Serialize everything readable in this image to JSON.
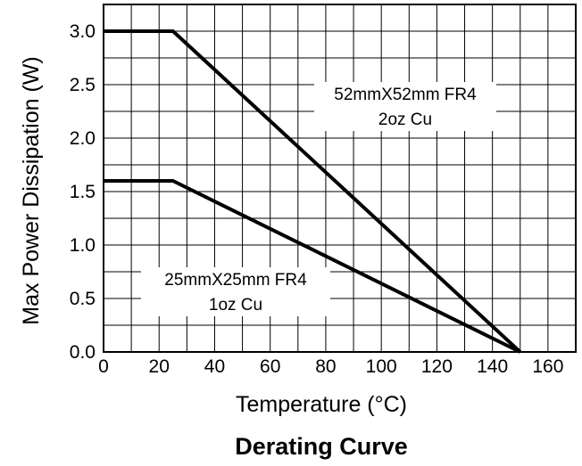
{
  "chart_data": {
    "type": "line",
    "title": "Derating Curve",
    "xlabel": "Temperature (°C)",
    "ylabel": "Max Power Dissipation (W)",
    "xlim": [
      0,
      170
    ],
    "ylim": [
      0,
      3.25
    ],
    "xticks": [
      "0",
      "20",
      "40",
      "60",
      "80",
      "100",
      "120",
      "140",
      "160"
    ],
    "yticks": [
      "0.0",
      "0.5",
      "1.0",
      "1.5",
      "2.0",
      "2.5",
      "3.0"
    ],
    "grid": true,
    "series": [
      {
        "label": "52mmX52mm FR4 2oz Cu",
        "x": [
          0,
          25,
          150
        ],
        "y": [
          3.0,
          3.0,
          0.0
        ]
      },
      {
        "label": "25mmX25mm FR4 1oz Cu",
        "x": [
          0,
          25,
          150
        ],
        "y": [
          1.6,
          1.6,
          0.0
        ]
      }
    ],
    "annotations": [
      {
        "lines": [
          "52mmX52mm FR4",
          "2oz Cu"
        ]
      },
      {
        "lines": [
          "25mmX25mm FR4",
          "1oz Cu"
        ]
      }
    ]
  }
}
